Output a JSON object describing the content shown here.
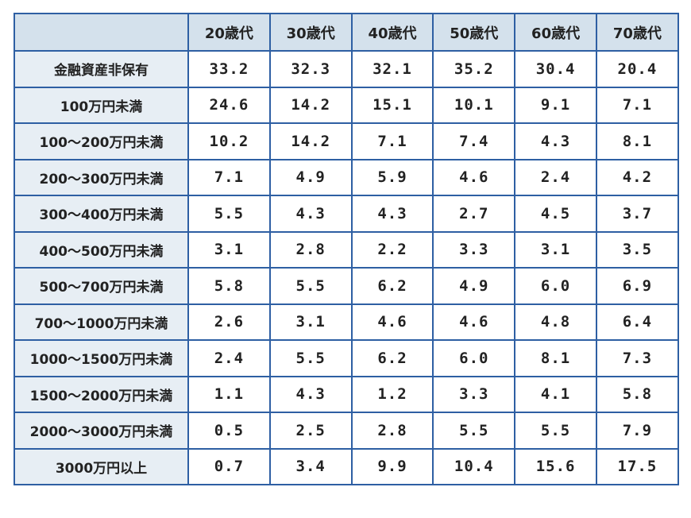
{
  "table": {
    "corner": "",
    "columns": [
      "20歳代",
      "30歳代",
      "40歳代",
      "50歳代",
      "60歳代",
      "70歳代"
    ],
    "rows": [
      {
        "label": "金融資産非保有",
        "values": [
          "33.2",
          "32.3",
          "32.1",
          "35.2",
          "30.4",
          "20.4"
        ]
      },
      {
        "label": "100万円未満",
        "values": [
          "24.6",
          "14.2",
          "15.1",
          "10.1",
          "9.1",
          "7.1"
        ]
      },
      {
        "label": "100～200万円未満",
        "values": [
          "10.2",
          "14.2",
          "7.1",
          "7.4",
          "4.3",
          "8.1"
        ]
      },
      {
        "label": "200～300万円未満",
        "values": [
          "7.1",
          "4.9",
          "5.9",
          "4.6",
          "2.4",
          "4.2"
        ]
      },
      {
        "label": "300～400万円未満",
        "values": [
          "5.5",
          "4.3",
          "4.3",
          "2.7",
          "4.5",
          "3.7"
        ]
      },
      {
        "label": "400～500万円未満",
        "values": [
          "3.1",
          "2.8",
          "2.2",
          "3.3",
          "3.1",
          "3.5"
        ]
      },
      {
        "label": "500～700万円未満",
        "values": [
          "5.8",
          "5.5",
          "6.2",
          "4.9",
          "6.0",
          "6.9"
        ]
      },
      {
        "label": "700～1000万円未満",
        "values": [
          "2.6",
          "3.1",
          "4.6",
          "4.6",
          "4.8",
          "6.4"
        ]
      },
      {
        "label": "1000～1500万円未満",
        "values": [
          "2.4",
          "5.5",
          "6.2",
          "6.0",
          "8.1",
          "7.3"
        ]
      },
      {
        "label": "1500～2000万円未満",
        "values": [
          "1.1",
          "4.3",
          "1.2",
          "3.3",
          "4.1",
          "5.8"
        ]
      },
      {
        "label": "2000～3000万円未満",
        "values": [
          "0.5",
          "2.5",
          "2.8",
          "5.5",
          "5.5",
          "7.9"
        ]
      },
      {
        "label": "3000万円以上",
        "values": [
          "0.7",
          "3.4",
          "9.9",
          "10.4",
          "15.6",
          "17.5"
        ]
      }
    ]
  },
  "colors": {
    "border": "#2e5fa3",
    "header_bg": "#d4e1ec",
    "row_label_bg": "#e7eef4"
  }
}
